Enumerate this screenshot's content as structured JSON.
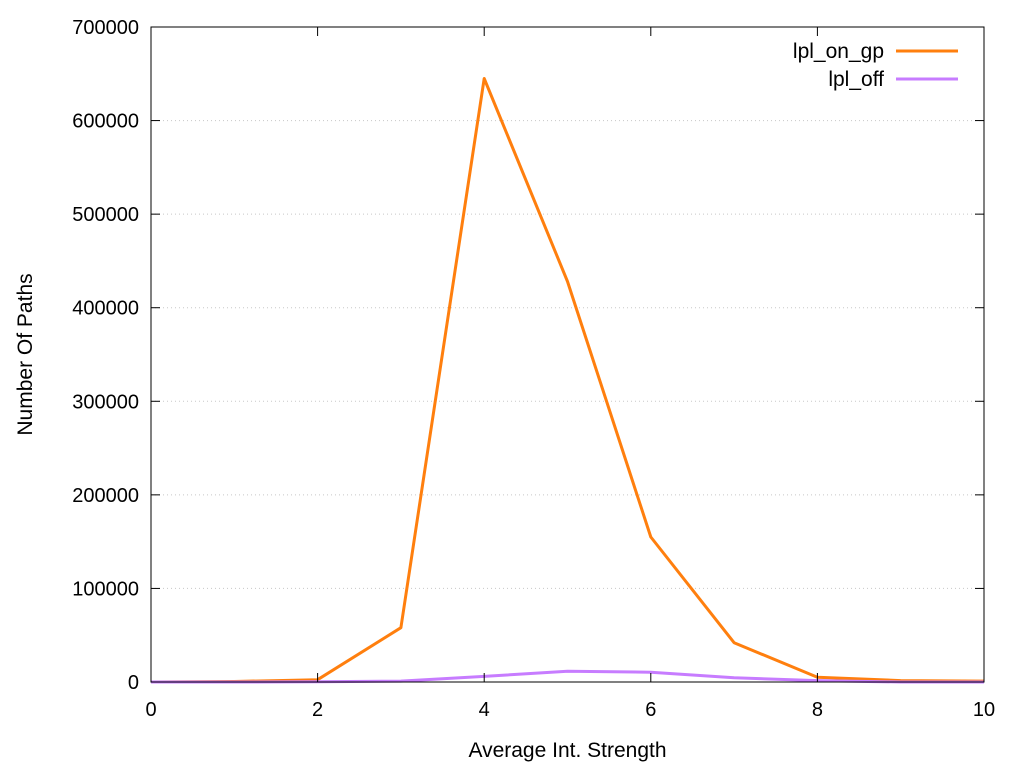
{
  "chart_data": {
    "type": "line",
    "xlabel": "Average Int. Strength",
    "ylabel": "Number Of Paths",
    "xlim": [
      0,
      10
    ],
    "ylim": [
      0,
      700000
    ],
    "xticks": [
      "0",
      "2",
      "4",
      "6",
      "8",
      "10"
    ],
    "yticks": [
      "0",
      "100000",
      "200000",
      "300000",
      "400000",
      "500000",
      "600000",
      "700000"
    ],
    "grid": true,
    "legend_position": "top-right",
    "x": [
      0,
      1,
      2,
      3,
      4,
      5,
      6,
      7,
      8,
      9,
      10
    ],
    "series": [
      {
        "name": "lpl_on_gp",
        "color": "#ff7f0e",
        "values": [
          0,
          500,
          2500,
          58000,
          645000,
          428000,
          155000,
          42000,
          5000,
          1500,
          1000
        ]
      },
      {
        "name": "lpl_off",
        "color": "#c77cff",
        "values": [
          0,
          0,
          200,
          1000,
          6000,
          11500,
          10500,
          4500,
          1500,
          0,
          0
        ]
      }
    ]
  }
}
